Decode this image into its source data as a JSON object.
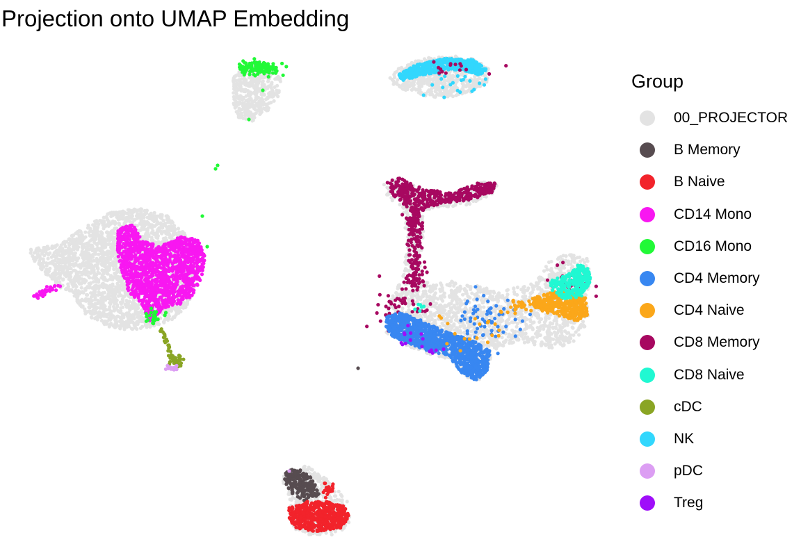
{
  "chart_data": {
    "type": "scatter",
    "title": "Projection onto UMAP Embedding",
    "xlabel": "",
    "ylabel": "",
    "grid": false,
    "legend": {
      "title": "Group",
      "placement": "right"
    },
    "groups": [
      {
        "name": "00_PROJECTOR",
        "color": "#e3e3e3"
      },
      {
        "name": "B Memory",
        "color": "#574c50"
      },
      {
        "name": "B Naive",
        "color": "#f2232b"
      },
      {
        "name": "CD14 Mono",
        "color": "#f817f1"
      },
      {
        "name": "CD16 Mono",
        "color": "#21f937"
      },
      {
        "name": "CD4 Memory",
        "color": "#3887f1"
      },
      {
        "name": "CD4 Naive",
        "color": "#fba71a"
      },
      {
        "name": "CD8 Memory",
        "color": "#a70860"
      },
      {
        "name": "CD8 Naive",
        "color": "#20f8d2"
      },
      {
        "name": "cDC",
        "color": "#8aa524"
      },
      {
        "name": "NK",
        "color": "#32d7fd"
      },
      {
        "name": "pDC",
        "color": "#dc9ef3"
      },
      {
        "name": "Treg",
        "color": "#9f0ef9"
      }
    ]
  }
}
